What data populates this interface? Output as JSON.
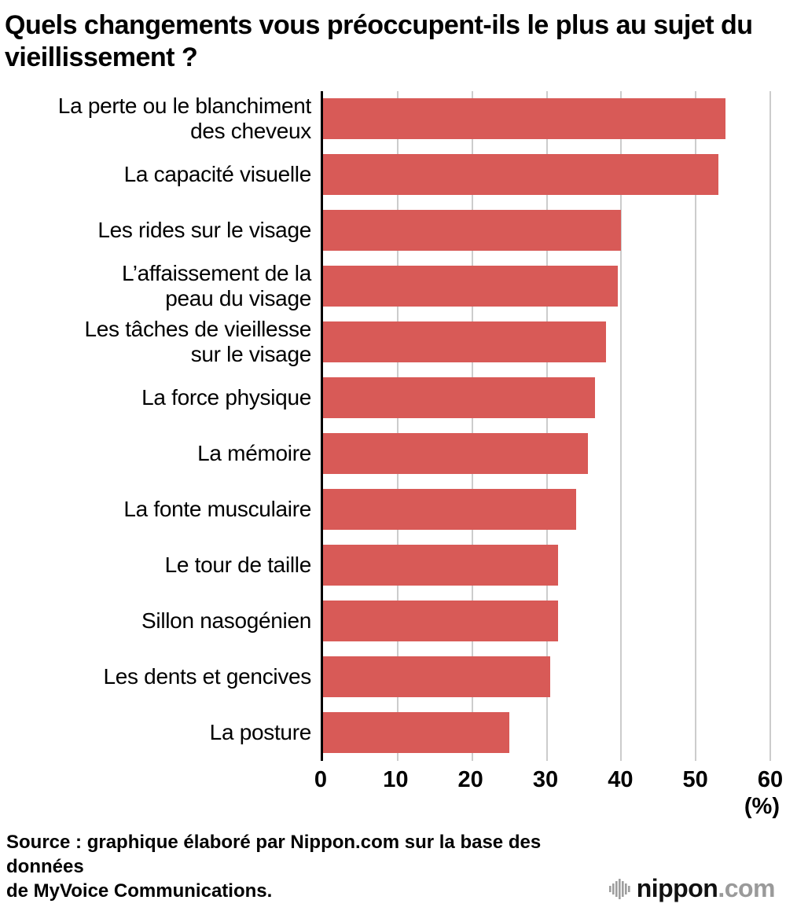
{
  "title": "Quels changements vous préoccupent-ils le plus au sujet du vieillissement ?",
  "chart_data": {
    "type": "bar",
    "orientation": "horizontal",
    "categories": [
      "La perte ou le blanchiment des cheveux",
      "La capacité visuelle",
      "Les rides sur le visage",
      "L’affaissement de la peau du visage",
      "Les tâches de vieillesse sur le visage",
      "La force physique",
      "La mémoire",
      "La fonte musculaire",
      "Le tour de taille",
      "Sillon nasogénien",
      "Les dents et gencives",
      "La posture"
    ],
    "categories_display": [
      [
        "La perte ou le blanchiment",
        "des cheveux"
      ],
      [
        "La capacité visuelle"
      ],
      [
        "Les rides sur le visage"
      ],
      [
        "L’affaissement de la",
        "peau du visage"
      ],
      [
        "Les tâches de vieillesse",
        "sur le visage"
      ],
      [
        "La force physique"
      ],
      [
        "La mémoire"
      ],
      [
        "La fonte musculaire"
      ],
      [
        "Le tour de taille"
      ],
      [
        "Sillon nasogénien"
      ],
      [
        "Les dents et gencives"
      ],
      [
        "La posture"
      ]
    ],
    "values": [
      54,
      53,
      40,
      39.5,
      38,
      36.5,
      35.5,
      34,
      31.5,
      31.5,
      30.5,
      25
    ],
    "xlim": [
      0,
      60
    ],
    "xticks": [
      0,
      10,
      20,
      30,
      40,
      50,
      60
    ],
    "xunit": "(%)",
    "bar_color": "#d85a57",
    "grid_color": "#cccccc",
    "grid": true,
    "legend": "none"
  },
  "footer": {
    "source_line1": "Source : graphique élaboré par Nippon.com sur la base des données",
    "source_line2": "de MyVoice Communications.",
    "logo_name": "nippon",
    "logo_tld": ".com"
  }
}
